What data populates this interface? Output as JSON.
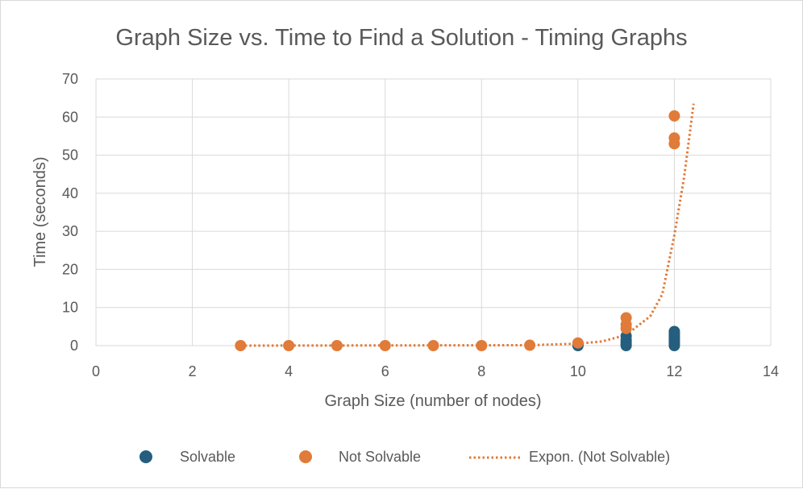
{
  "chart_data": {
    "type": "scatter",
    "title": "Graph Size vs. Time to Find a Solution - Timing Graphs",
    "xlabel": "Graph Size (number of nodes)",
    "ylabel": "Time (seconds)",
    "xlim": [
      0,
      14
    ],
    "ylim": [
      0,
      70
    ],
    "x_ticks": [
      0,
      2,
      4,
      6,
      8,
      10,
      12,
      14
    ],
    "y_ticks": [
      0,
      10,
      20,
      30,
      40,
      50,
      60,
      70
    ],
    "grid": true,
    "legend_position": "bottom",
    "series": [
      {
        "name": "Solvable",
        "color": "#255e7e",
        "marker": "circle",
        "points": [
          {
            "x": 10,
            "y": 0.0
          },
          {
            "x": 10,
            "y": 0.2
          },
          {
            "x": 11,
            "y": 0.0
          },
          {
            "x": 11,
            "y": 0.4
          },
          {
            "x": 11,
            "y": 0.9
          },
          {
            "x": 11,
            "y": 1.5
          },
          {
            "x": 11,
            "y": 2.5
          },
          {
            "x": 12,
            "y": 0.0
          },
          {
            "x": 12,
            "y": 0.5
          },
          {
            "x": 12,
            "y": 1.0
          },
          {
            "x": 12,
            "y": 1.5
          },
          {
            "x": 12,
            "y": 2.0
          },
          {
            "x": 12,
            "y": 2.6
          },
          {
            "x": 12,
            "y": 3.2
          },
          {
            "x": 12,
            "y": 3.7
          }
        ]
      },
      {
        "name": "Not Solvable",
        "color": "#e07b39",
        "marker": "circle",
        "points": [
          {
            "x": 3,
            "y": 0.0
          },
          {
            "x": 4,
            "y": 0.0
          },
          {
            "x": 5,
            "y": 0.0
          },
          {
            "x": 6,
            "y": 0.0
          },
          {
            "x": 7,
            "y": 0.0
          },
          {
            "x": 8,
            "y": 0.0
          },
          {
            "x": 9,
            "y": 0.1
          },
          {
            "x": 10,
            "y": 0.7
          },
          {
            "x": 11,
            "y": 4.5
          },
          {
            "x": 11,
            "y": 5.5
          },
          {
            "x": 11,
            "y": 7.3
          },
          {
            "x": 12,
            "y": 53.0
          },
          {
            "x": 12,
            "y": 54.5
          },
          {
            "x": 12,
            "y": 60.3
          }
        ]
      }
    ],
    "trendline": {
      "name": "Expon. (Not Solvable)",
      "type": "exponential",
      "series": "Not Solvable",
      "color": "#e07b39",
      "style": "dotted",
      "x_range": [
        3,
        12.4
      ],
      "points": [
        {
          "x": 3,
          "y": 0.0
        },
        {
          "x": 9,
          "y": 0.1
        },
        {
          "x": 10,
          "y": 0.5
        },
        {
          "x": 10.5,
          "y": 1.1
        },
        {
          "x": 11,
          "y": 2.8
        },
        {
          "x": 11.5,
          "y": 7.7
        },
        {
          "x": 11.75,
          "y": 13.5
        },
        {
          "x": 12,
          "y": 29.0
        },
        {
          "x": 12.2,
          "y": 44.0
        },
        {
          "x": 12.4,
          "y": 63.5
        }
      ]
    }
  }
}
